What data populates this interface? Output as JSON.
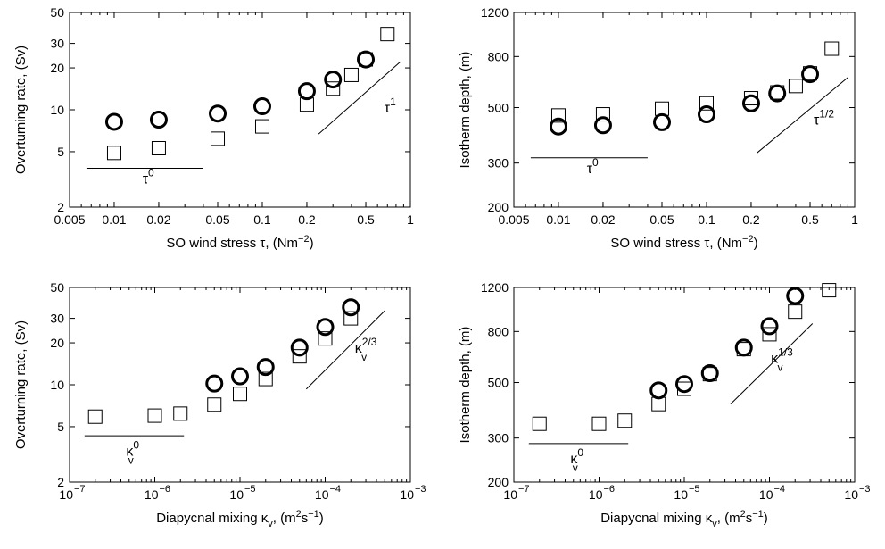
{
  "chart_data": [
    {
      "type": "scatter",
      "panel": "top-left",
      "xlabel": "SO wind stress τ, (Nm⁻²)",
      "ylabel": "Overturning rate, (Sv)",
      "xscale": "log",
      "yscale": "log",
      "xlim": [
        0.005,
        1
      ],
      "ylim": [
        2,
        50
      ],
      "xticks": [
        0.005,
        0.01,
        0.02,
        0.05,
        0.1,
        0.2,
        0.5,
        1
      ],
      "xticklabels": [
        "0.005",
        "0.01",
        "0.02",
        "0.05",
        "0.1",
        "0.2",
        "0.5",
        "1"
      ],
      "yticks": [
        2,
        5,
        10,
        20,
        30,
        50
      ],
      "yticklabels": [
        "2",
        "5",
        "10",
        "20",
        "30",
        "50"
      ],
      "series": [
        {
          "marker": "circle",
          "x": [
            0.01,
            0.02,
            0.05,
            0.1,
            0.2,
            0.3,
            0.5
          ],
          "y": [
            8.2,
            8.5,
            9.4,
            10.6,
            13.6,
            16.5,
            23
          ]
        },
        {
          "marker": "square",
          "x": [
            0.01,
            0.02,
            0.05,
            0.1,
            0.2,
            0.3,
            0.4,
            0.5,
            0.7
          ],
          "y": [
            4.9,
            5.3,
            6.2,
            7.6,
            10.9,
            14.2,
            17.8,
            23,
            35
          ]
        }
      ],
      "ref_lines": [
        {
          "label_base": "τ",
          "label_exp": "0",
          "x": [
            0.0065,
            0.04
          ],
          "y": [
            3.8,
            3.8
          ],
          "label_at": [
            0.017,
            2.95
          ]
        },
        {
          "label_base": "τ",
          "label_exp": "1",
          "x": [
            0.24,
            0.85
          ],
          "y": [
            6.7,
            22
          ],
          "label_at": [
            0.73,
            9.6
          ]
        }
      ]
    },
    {
      "type": "scatter",
      "panel": "top-right",
      "xlabel": "SO wind stress τ, (Nm⁻²)",
      "ylabel": "Isotherm depth, (m)",
      "xscale": "log",
      "yscale": "log",
      "xlim": [
        0.005,
        1
      ],
      "ylim": [
        200,
        1200
      ],
      "xticks": [
        0.005,
        0.01,
        0.02,
        0.05,
        0.1,
        0.2,
        0.5,
        1
      ],
      "xticklabels": [
        "0.005",
        "0.01",
        "0.02",
        "0.05",
        "0.1",
        "0.2",
        "0.5",
        "1"
      ],
      "yticks": [
        200,
        300,
        500,
        800,
        1200
      ],
      "yticklabels": [
        "200",
        "300",
        "500",
        "800",
        "1200"
      ],
      "series": [
        {
          "marker": "circle",
          "x": [
            0.01,
            0.02,
            0.05,
            0.1,
            0.2,
            0.3,
            0.5
          ],
          "y": [
            420,
            425,
            437,
            470,
            520,
            570,
            680
          ]
        },
        {
          "marker": "square",
          "x": [
            0.01,
            0.02,
            0.05,
            0.1,
            0.2,
            0.3,
            0.4,
            0.5,
            0.7
          ],
          "y": [
            465,
            470,
            495,
            520,
            545,
            575,
            610,
            685,
            860
          ]
        }
      ],
      "ref_lines": [
        {
          "label_base": "τ",
          "label_exp": "0",
          "x": [
            0.0065,
            0.04
          ],
          "y": [
            315,
            315
          ],
          "label_at": [
            0.017,
            273
          ]
        },
        {
          "label_base": "τ",
          "label_exp": "1/2",
          "x": [
            0.22,
            0.9
          ],
          "y": [
            330,
            660
          ],
          "label_at": [
            0.62,
            428
          ]
        }
      ]
    },
    {
      "type": "scatter",
      "panel": "bottom-left",
      "xlabel": "Diapycnal mixing κᵥ, (m²s⁻¹)",
      "ylabel": "Overturning rate, (Sv)",
      "xscale": "log",
      "yscale": "log",
      "xlim": [
        1e-07,
        0.001
      ],
      "ylim": [
        2,
        50
      ],
      "xticks": [
        1e-07,
        1e-06,
        1e-05,
        0.0001,
        0.001
      ],
      "xticklabels": [
        "10",
        "10",
        "10",
        "10",
        "10"
      ],
      "xtickexps": [
        "−7",
        "−6",
        "−5",
        "−4",
        "−3"
      ],
      "yticks": [
        2,
        5,
        10,
        20,
        30,
        50
      ],
      "yticklabels": [
        "2",
        "5",
        "10",
        "20",
        "30",
        "50"
      ],
      "series": [
        {
          "marker": "circle",
          "x": [
            5e-06,
            1e-05,
            2e-05,
            5e-05,
            0.0001,
            0.0002
          ],
          "y": [
            10.2,
            11.5,
            13.4,
            18.5,
            26,
            36
          ]
        },
        {
          "marker": "square",
          "x": [
            2e-07,
            1e-06,
            2e-06,
            5e-06,
            1e-05,
            2e-05,
            5e-05,
            0.0001,
            0.0002
          ],
          "y": [
            5.9,
            6.0,
            6.2,
            7.2,
            8.6,
            11.0,
            16.0,
            21.5,
            30
          ]
        }
      ],
      "ref_lines": [
        {
          "label_base": "κ",
          "label_exp": "0",
          "label_sub": "v",
          "x": [
            1.5e-07,
            2.2e-06
          ],
          "y": [
            4.3,
            4.3
          ],
          "label_at": [
            5.5e-07,
            3.1
          ]
        },
        {
          "label_base": "κ",
          "label_exp": "2/3",
          "label_sub": "v",
          "x": [
            6e-05,
            0.0005
          ],
          "y": [
            9.3,
            34
          ],
          "label_at": [
            0.0003,
            17
          ]
        }
      ]
    },
    {
      "type": "scatter",
      "panel": "bottom-right",
      "xlabel": "Diapycnal mixing κᵥ, (m²s⁻¹)",
      "ylabel": "Isotherm depth, (m)",
      "xscale": "log",
      "yscale": "log",
      "xlim": [
        1e-07,
        0.001
      ],
      "ylim": [
        200,
        1200
      ],
      "xticks": [
        1e-07,
        1e-06,
        1e-05,
        0.0001,
        0.001
      ],
      "xticklabels": [
        "10",
        "10",
        "10",
        "10",
        "10"
      ],
      "xtickexps": [
        "−7",
        "−6",
        "−5",
        "−4",
        "−3"
      ],
      "yticks": [
        200,
        300,
        500,
        800,
        1200
      ],
      "yticklabels": [
        "200",
        "300",
        "500",
        "800",
        "1200"
      ],
      "series": [
        {
          "marker": "circle",
          "x": [
            5e-06,
            1e-05,
            2e-05,
            5e-05,
            0.0001,
            0.0002
          ],
          "y": [
            465,
            493,
            545,
            690,
            840,
            1110
          ]
        },
        {
          "marker": "square",
          "x": [
            2e-07,
            1e-06,
            2e-06,
            5e-06,
            1e-05,
            2e-05,
            5e-05,
            0.0001,
            0.0002,
            0.0005
          ],
          "y": [
            342,
            342,
            352,
            410,
            472,
            540,
            680,
            780,
            960,
            1170
          ]
        }
      ],
      "ref_lines": [
        {
          "label_base": "κ",
          "label_exp": "0",
          "label_sub": "v",
          "x": [
            1.5e-07,
            2.2e-06
          ],
          "y": [
            285,
            285
          ],
          "label_at": [
            5.5e-07,
            238
          ]
        },
        {
          "label_base": "κ",
          "label_exp": "1/3",
          "label_sub": "v",
          "x": [
            3.5e-05,
            0.00032
          ],
          "y": [
            410,
            860
          ],
          "label_at": [
            0.00014,
            600
          ]
        }
      ]
    }
  ]
}
